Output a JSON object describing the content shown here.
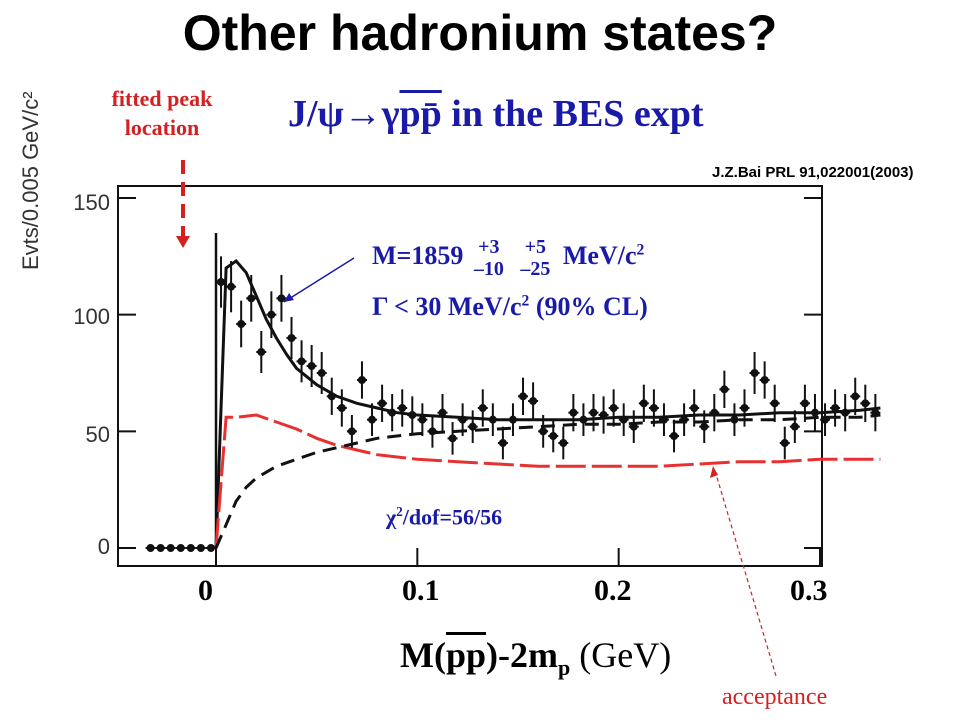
{
  "slide": {
    "title": "Other hadronium states?",
    "citation": "J.Z.Bai PRL 91,022001(2003)",
    "fitted_label_line1": "fitted peak",
    "fitted_label_line2": "location",
    "acceptance_label": "acceptance"
  },
  "colors": {
    "title": "#000000",
    "subtitle": "#1a1aa8",
    "annotation": "#d42020",
    "acceptance_curve": "#e83030"
  },
  "chart_data": {
    "type": "scatter",
    "title": "J/ψ→γpp̄ in the BES expt",
    "title_parts": {
      "prefix": "J/ψ→γ",
      "overline": "pp̄",
      "suffix": " in the BES expt"
    },
    "xlabel": "M(pp̄)-2m_p (GeV)",
    "xlabel_parts": {
      "a": "M(",
      "b": "pp",
      "c": ")-2m",
      "d": "p",
      "e": " (GeV)"
    },
    "ylabel": "Evts/0.005 GeV/c²",
    "xlim": [
      -0.035,
      0.35
    ],
    "ylim": [
      -5,
      150
    ],
    "xticks": [
      "0",
      "0.1",
      "0.2",
      "0.3"
    ],
    "xtick_values": [
      0,
      0.1,
      0.2,
      0.3
    ],
    "yticks": [
      "0",
      "50",
      "100",
      "150"
    ],
    "ytick_values": [
      0,
      50,
      100,
      150
    ],
    "annotations": {
      "mass": "M=1859",
      "mass_stat_up": "+3",
      "mass_stat_down": "–10",
      "mass_sys_up": "+5",
      "mass_sys_down": "–25",
      "mass_unit": "MeV/c",
      "mass_unit_sup": "2",
      "width": "Γ < 30 MeV/c",
      "width_sup": "2",
      "width_suffix": " (90% CL)",
      "chi2": "χ",
      "chi2_sup": "2",
      "chi2_suffix": "/dof=56/56"
    },
    "series": [
      {
        "kind": "data",
        "x": [
          -0.0325,
          -0.0275,
          -0.0225,
          -0.0175,
          -0.0125,
          -0.0075,
          -0.0025,
          0.0025,
          0.0075,
          0.0125,
          0.0175,
          0.0225,
          0.0275,
          0.0325,
          0.0375,
          0.0425,
          0.0475,
          0.0525,
          0.0575,
          0.0625,
          0.0675,
          0.0725,
          0.0775,
          0.0825,
          0.0875,
          0.0925,
          0.0975,
          0.1025,
          0.1075,
          0.1125,
          0.1175,
          0.1225,
          0.1275,
          0.1325,
          0.1375,
          0.1425,
          0.1475,
          0.1525,
          0.1575,
          0.1625,
          0.1675,
          0.1725,
          0.1775,
          0.1825,
          0.1875,
          0.1925,
          0.1975,
          0.2025,
          0.2075,
          0.2125,
          0.2175,
          0.2225,
          0.2275,
          0.2325,
          0.2375,
          0.2425,
          0.2475,
          0.2525,
          0.2575,
          0.2625,
          0.2675,
          0.2725,
          0.2775,
          0.2825,
          0.2875,
          0.2925,
          0.2975,
          0.3025,
          0.3075,
          0.3125,
          0.3175,
          0.3225,
          0.3275
        ],
        "y": [
          0,
          0,
          0,
          0,
          0,
          0,
          0,
          114,
          112,
          96,
          107,
          84,
          100,
          107,
          90,
          80,
          78,
          75,
          65,
          60,
          50,
          72,
          55,
          62,
          58,
          60,
          57,
          55,
          50,
          58,
          47,
          55,
          52,
          60,
          55,
          45,
          55,
          65,
          63,
          50,
          48,
          45,
          58,
          55,
          58,
          57,
          60,
          55,
          52,
          62,
          60,
          55,
          48,
          55,
          60,
          52,
          58,
          68,
          55,
          60,
          75,
          72,
          62,
          45,
          52,
          62,
          58,
          55,
          60,
          58,
          65,
          62,
          58
        ],
        "err": [
          1,
          1,
          1,
          1,
          1,
          1,
          1,
          11,
          11,
          10,
          10,
          9,
          10,
          10,
          9,
          9,
          9,
          9,
          8,
          8,
          7,
          8,
          7,
          8,
          8,
          8,
          8,
          7,
          7,
          8,
          7,
          7,
          7,
          8,
          7,
          7,
          7,
          8,
          8,
          7,
          7,
          7,
          8,
          7,
          8,
          8,
          8,
          7,
          7,
          8,
          8,
          7,
          7,
          7,
          8,
          7,
          8,
          8,
          7,
          8,
          9,
          8,
          8,
          7,
          7,
          8,
          8,
          7,
          8,
          8,
          8,
          8,
          8
        ]
      },
      {
        "name": "fit",
        "kind": "fit",
        "x": [
          0,
          0.005,
          0.01,
          0.015,
          0.02,
          0.025,
          0.03,
          0.035,
          0.04,
          0.05,
          0.06,
          0.07,
          0.08,
          0.09,
          0.1,
          0.12,
          0.14,
          0.16,
          0.18,
          0.2,
          0.22,
          0.24,
          0.26,
          0.28,
          0.3,
          0.32,
          0.33
        ],
        "y": [
          0,
          120,
          123,
          118,
          108,
          98,
          90,
          83,
          77,
          70,
          65,
          62,
          60,
          58,
          57,
          56,
          55,
          55,
          55,
          56,
          56,
          57,
          57,
          58,
          58,
          59,
          60
        ]
      },
      {
        "name": "acceptance",
        "kind": "acceptance",
        "x": [
          0,
          0.005,
          0.01,
          0.02,
          0.03,
          0.04,
          0.05,
          0.06,
          0.07,
          0.08,
          0.09,
          0.1,
          0.12,
          0.14,
          0.16,
          0.18,
          0.2,
          0.22,
          0.24,
          0.26,
          0.28,
          0.3,
          0.32,
          0.33
        ],
        "y": [
          0,
          56,
          56,
          57,
          54,
          51,
          47,
          44,
          42,
          40,
          39,
          38,
          37,
          36,
          35,
          35,
          35,
          35,
          36,
          37,
          37,
          38,
          38,
          38
        ]
      },
      {
        "name": "background",
        "kind": "background",
        "x": [
          0,
          0.005,
          0.01,
          0.015,
          0.02,
          0.03,
          0.04,
          0.05,
          0.06,
          0.07,
          0.08,
          0.1,
          0.12,
          0.14,
          0.16,
          0.18,
          0.2,
          0.22,
          0.24,
          0.26,
          0.28,
          0.3,
          0.32,
          0.33
        ],
        "y": [
          0,
          10,
          20,
          26,
          30,
          35,
          38,
          41,
          43,
          45,
          47,
          49,
          50,
          51,
          52,
          53,
          53,
          54,
          54,
          55,
          55,
          56,
          56,
          57
        ]
      }
    ]
  }
}
